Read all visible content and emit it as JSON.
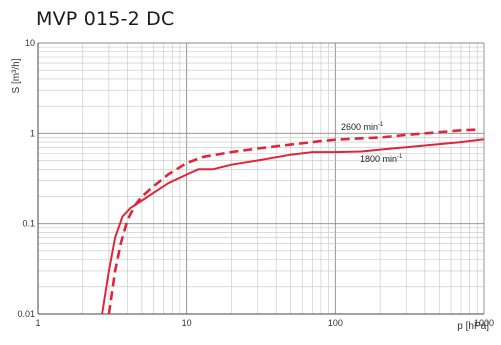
{
  "chart_data": {
    "type": "line",
    "title": "MVP 015-2 DC",
    "xlabel": "p [hPa]",
    "ylabel": "S [m³/h]",
    "x_scale": "log",
    "y_scale": "log",
    "xlim": [
      1,
      1000
    ],
    "ylim": [
      0.01,
      10
    ],
    "x_ticks": [
      {
        "value": 1,
        "label": "1"
      },
      {
        "value": 10,
        "label": "10"
      },
      {
        "value": 100,
        "label": "100"
      },
      {
        "value": 1000,
        "label": "1000"
      }
    ],
    "y_ticks": [
      {
        "value": 0.01,
        "label": "0.01"
      },
      {
        "value": 0.1,
        "label": "0.1"
      },
      {
        "value": 1,
        "label": "1"
      },
      {
        "value": 10,
        "label": "10"
      }
    ],
    "grid": true,
    "legend": "inline labels",
    "series": [
      {
        "name": "1800 min⁻¹",
        "label_text": "1800 min",
        "label_sup": "-1",
        "color": "#e0263a",
        "style": "solid",
        "points": [
          [
            2.7,
            0.01
          ],
          [
            3.0,
            0.03
          ],
          [
            3.3,
            0.07
          ],
          [
            3.7,
            0.12
          ],
          [
            4.2,
            0.15
          ],
          [
            5.0,
            0.18
          ],
          [
            6.0,
            0.22
          ],
          [
            7.5,
            0.28
          ],
          [
            10.0,
            0.35
          ],
          [
            12.0,
            0.4
          ],
          [
            15.0,
            0.4
          ],
          [
            20.0,
            0.45
          ],
          [
            30.0,
            0.5
          ],
          [
            50.0,
            0.58
          ],
          [
            70.0,
            0.62
          ],
          [
            100.0,
            0.62
          ],
          [
            150.0,
            0.63
          ],
          [
            200.0,
            0.66
          ],
          [
            300.0,
            0.7
          ],
          [
            500.0,
            0.76
          ],
          [
            700.0,
            0.8
          ],
          [
            1000.0,
            0.86
          ]
        ]
      },
      {
        "name": "2600 min⁻¹",
        "label_text": "2600 min",
        "label_sup": "-1",
        "color": "#e0263a",
        "style": "dashed",
        "points": [
          [
            3.0,
            0.01
          ],
          [
            3.3,
            0.03
          ],
          [
            3.6,
            0.06
          ],
          [
            4.0,
            0.11
          ],
          [
            4.5,
            0.16
          ],
          [
            5.0,
            0.2
          ],
          [
            6.0,
            0.26
          ],
          [
            7.5,
            0.35
          ],
          [
            10.0,
            0.47
          ],
          [
            13.0,
            0.55
          ],
          [
            20.0,
            0.62
          ],
          [
            30.0,
            0.68
          ],
          [
            50.0,
            0.75
          ],
          [
            80.0,
            0.82
          ],
          [
            100.0,
            0.85
          ],
          [
            150.0,
            0.88
          ],
          [
            200.0,
            0.9
          ],
          [
            300.0,
            0.96
          ],
          [
            500.0,
            1.03
          ],
          [
            700.0,
            1.08
          ],
          [
            900.0,
            1.1
          ]
        ]
      }
    ]
  }
}
